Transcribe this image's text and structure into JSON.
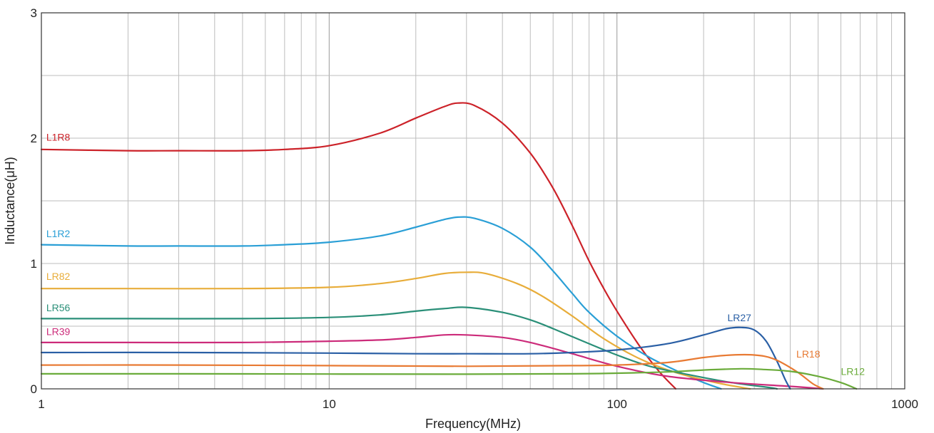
{
  "chart_data": {
    "type": "line",
    "xlabel": "Frequency(MHz)",
    "ylabel": "Inductance(μH)",
    "x_scale": "log",
    "xlim": [
      1,
      1000
    ],
    "ylim": [
      0,
      3
    ],
    "x_ticks": [
      "1",
      "10",
      "100",
      "1000"
    ],
    "y_ticks": [
      "0",
      "1",
      "2",
      "3"
    ],
    "grid": true,
    "series": [
      {
        "name": "L1R8",
        "color": "#cc2229",
        "points": [
          [
            1,
            1.91
          ],
          [
            2,
            1.9
          ],
          [
            3,
            1.9
          ],
          [
            5,
            1.9
          ],
          [
            7,
            1.91
          ],
          [
            10,
            1.94
          ],
          [
            15,
            2.04
          ],
          [
            20,
            2.16
          ],
          [
            25,
            2.25
          ],
          [
            28,
            2.28
          ],
          [
            32,
            2.26
          ],
          [
            40,
            2.12
          ],
          [
            50,
            1.88
          ],
          [
            60,
            1.6
          ],
          [
            70,
            1.3
          ],
          [
            80,
            1.02
          ],
          [
            90,
            0.8
          ],
          [
            100,
            0.62
          ],
          [
            120,
            0.34
          ],
          [
            140,
            0.14
          ],
          [
            160,
            0.0
          ]
        ]
      },
      {
        "name": "L1R2",
        "color": "#2a9fd6",
        "points": [
          [
            1,
            1.15
          ],
          [
            2,
            1.14
          ],
          [
            3,
            1.14
          ],
          [
            5,
            1.14
          ],
          [
            7,
            1.15
          ],
          [
            10,
            1.17
          ],
          [
            15,
            1.22
          ],
          [
            20,
            1.29
          ],
          [
            25,
            1.35
          ],
          [
            28,
            1.37
          ],
          [
            32,
            1.36
          ],
          [
            40,
            1.28
          ],
          [
            50,
            1.13
          ],
          [
            60,
            0.94
          ],
          [
            70,
            0.76
          ],
          [
            80,
            0.61
          ],
          [
            100,
            0.42
          ],
          [
            130,
            0.25
          ],
          [
            170,
            0.12
          ],
          [
            200,
            0.05
          ],
          [
            230,
            0.0
          ]
        ]
      },
      {
        "name": "LR82",
        "color": "#e8ad3a",
        "points": [
          [
            1,
            0.8
          ],
          [
            2,
            0.8
          ],
          [
            5,
            0.8
          ],
          [
            10,
            0.81
          ],
          [
            15,
            0.84
          ],
          [
            20,
            0.88
          ],
          [
            25,
            0.92
          ],
          [
            30,
            0.93
          ],
          [
            35,
            0.92
          ],
          [
            45,
            0.84
          ],
          [
            55,
            0.74
          ],
          [
            70,
            0.58
          ],
          [
            90,
            0.4
          ],
          [
            120,
            0.24
          ],
          [
            160,
            0.13
          ],
          [
            220,
            0.05
          ],
          [
            290,
            0.0
          ]
        ]
      },
      {
        "name": "LR56",
        "color": "#2a8f78",
        "points": [
          [
            1,
            0.56
          ],
          [
            2,
            0.56
          ],
          [
            5,
            0.56
          ],
          [
            10,
            0.57
          ],
          [
            15,
            0.59
          ],
          [
            20,
            0.62
          ],
          [
            25,
            0.64
          ],
          [
            30,
            0.65
          ],
          [
            40,
            0.61
          ],
          [
            50,
            0.55
          ],
          [
            60,
            0.48
          ],
          [
            80,
            0.36
          ],
          [
            100,
            0.27
          ],
          [
            130,
            0.18
          ],
          [
            180,
            0.11
          ],
          [
            250,
            0.05
          ],
          [
            340,
            0.01
          ],
          [
            360,
            0.0
          ]
        ]
      },
      {
        "name": "LR39",
        "color": "#cc2b7a",
        "points": [
          [
            1,
            0.37
          ],
          [
            2,
            0.37
          ],
          [
            5,
            0.37
          ],
          [
            10,
            0.38
          ],
          [
            15,
            0.39
          ],
          [
            20,
            0.41
          ],
          [
            25,
            0.43
          ],
          [
            30,
            0.43
          ],
          [
            40,
            0.41
          ],
          [
            50,
            0.37
          ],
          [
            70,
            0.28
          ],
          [
            100,
            0.18
          ],
          [
            150,
            0.1
          ],
          [
            250,
            0.05
          ],
          [
            400,
            0.02
          ],
          [
            520,
            0.0
          ]
        ]
      },
      {
        "name": "LR27",
        "color": "#2a5fa5",
        "points": [
          [
            1,
            0.29
          ],
          [
            3,
            0.29
          ],
          [
            10,
            0.285
          ],
          [
            20,
            0.28
          ],
          [
            30,
            0.28
          ],
          [
            50,
            0.28
          ],
          [
            70,
            0.29
          ],
          [
            100,
            0.31
          ],
          [
            150,
            0.36
          ],
          [
            200,
            0.43
          ],
          [
            240,
            0.48
          ],
          [
            270,
            0.49
          ],
          [
            300,
            0.47
          ],
          [
            330,
            0.38
          ],
          [
            360,
            0.22
          ],
          [
            385,
            0.07
          ],
          [
            400,
            0.0
          ]
        ]
      },
      {
        "name": "LR18",
        "color": "#e87a33",
        "points": [
          [
            1,
            0.19
          ],
          [
            3,
            0.19
          ],
          [
            10,
            0.185
          ],
          [
            30,
            0.18
          ],
          [
            70,
            0.185
          ],
          [
            100,
            0.19
          ],
          [
            150,
            0.21
          ],
          [
            200,
            0.25
          ],
          [
            250,
            0.27
          ],
          [
            300,
            0.27
          ],
          [
            350,
            0.24
          ],
          [
            420,
            0.14
          ],
          [
            480,
            0.04
          ],
          [
            520,
            0.0
          ]
        ]
      },
      {
        "name": "LR12",
        "color": "#6aab3a",
        "points": [
          [
            1,
            0.12
          ],
          [
            3,
            0.12
          ],
          [
            10,
            0.118
          ],
          [
            30,
            0.117
          ],
          [
            70,
            0.12
          ],
          [
            100,
            0.125
          ],
          [
            150,
            0.135
          ],
          [
            200,
            0.15
          ],
          [
            270,
            0.16
          ],
          [
            320,
            0.155
          ],
          [
            400,
            0.14
          ],
          [
            500,
            0.1
          ],
          [
            600,
            0.05
          ],
          [
            680,
            0.0
          ]
        ]
      }
    ],
    "labels": [
      {
        "series": "L1R8",
        "text": "L1R8",
        "x": 1.04,
        "y": 1.98
      },
      {
        "series": "L1R2",
        "text": "L1R2",
        "x": 1.04,
        "y": 1.21
      },
      {
        "series": "LR82",
        "text": "LR82",
        "x": 1.04,
        "y": 0.87
      },
      {
        "series": "LR56",
        "text": "LR56",
        "x": 1.04,
        "y": 0.62
      },
      {
        "series": "LR39",
        "text": "LR39",
        "x": 1.04,
        "y": 0.43
      },
      {
        "series": "LR27",
        "text": "LR27",
        "x": 242,
        "y": 0.54
      },
      {
        "series": "LR18",
        "text": "LR18",
        "x": 420,
        "y": 0.25
      },
      {
        "series": "LR12",
        "text": "LR12",
        "x": 600,
        "y": 0.11
      }
    ]
  }
}
